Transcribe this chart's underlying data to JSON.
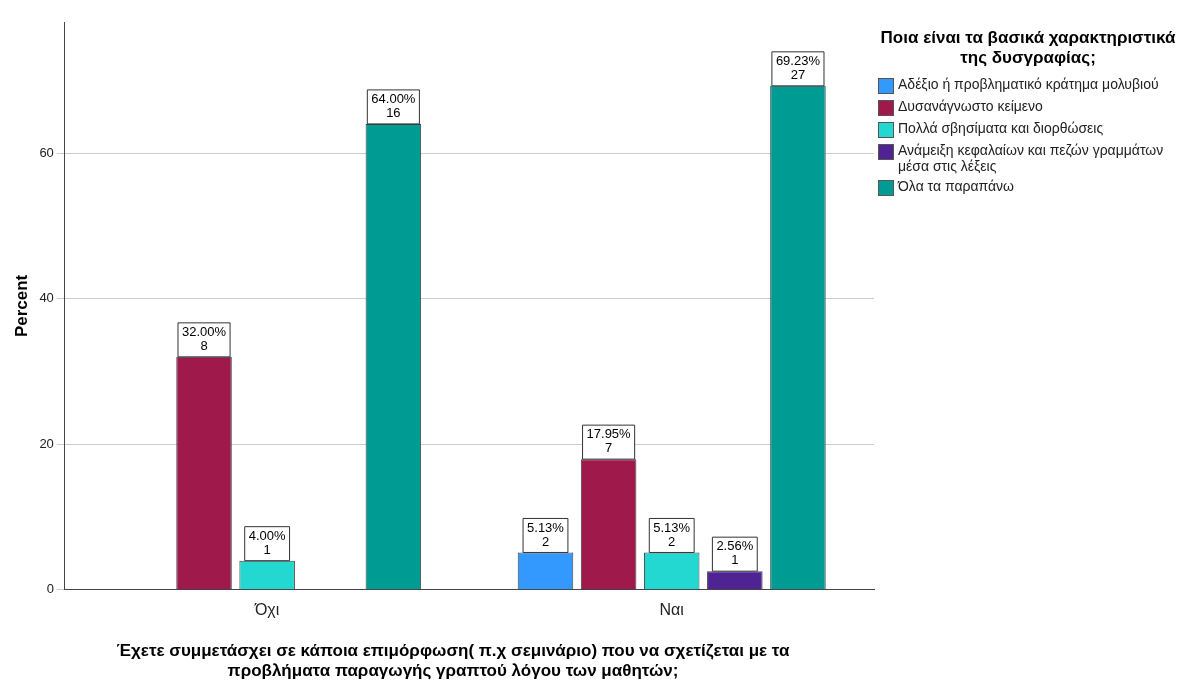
{
  "chart_data": {
    "type": "bar",
    "xlabel": "Έχετε συμμετάσχει σε κάποια επιμόρφωση( π.χ σεμινάριο) που να σχετίζεται με τα προβλήματα παραγωγής γραπτού λόγου των μαθητών;",
    "ylabel": "Percent",
    "legend_title": "Ποια είναι τα βασικά χαρακτηριστικά της δυσγραφίας;",
    "categories": [
      "Όχι",
      "Ναι"
    ],
    "ylim": [
      0,
      78
    ],
    "yticks": [
      0,
      20,
      40,
      60
    ],
    "grid": "y",
    "legend": "right",
    "series": [
      {
        "name": "Αδέξιο ή προβληματικό κράτημα μολυβιού",
        "color": "#3399ff",
        "values": [
          null,
          5.13
        ],
        "value_labels": [
          null,
          "5.13%\n2"
        ]
      },
      {
        "name": "Δυσανάγνωστο κείμενο",
        "color": "#a0194b",
        "values": [
          32.0,
          17.95
        ],
        "value_labels": [
          "32.00%\n8",
          "17.95%\n7"
        ]
      },
      {
        "name": "Πολλά σβησίματα και διορθώσεις",
        "color": "#22d8d0",
        "values": [
          4.0,
          5.13
        ],
        "value_labels": [
          "4.00%\n1",
          "5.13%\n2"
        ]
      },
      {
        "name": "Ανάμειξη κεφαλαίων και πεζών γραμμάτων μέσα στις λέξεις",
        "color": "#4f2394",
        "values": [
          null,
          2.56
        ],
        "value_labels": [
          null,
          "2.56%\n1"
        ]
      },
      {
        "name": "Όλα τα παραπάνω",
        "color": "#009c94",
        "values": [
          64.0,
          69.23
        ],
        "value_labels": [
          "64.00%\n16",
          "69.23%\n27"
        ]
      }
    ]
  }
}
